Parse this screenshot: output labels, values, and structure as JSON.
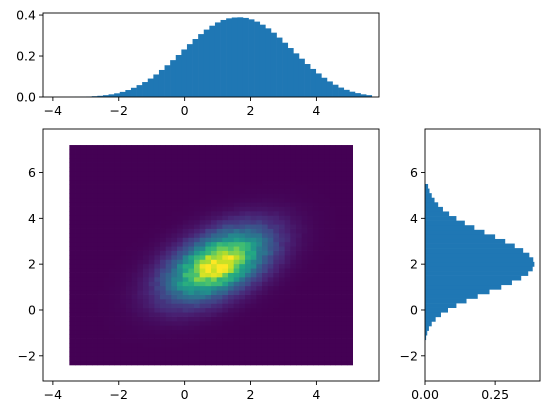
{
  "chart_data": [
    {
      "id": "top",
      "type": "bar",
      "description_role": "marginal histogram of x",
      "color": "#1f77b4",
      "xlim": [
        -4.3,
        5.9
      ],
      "ylim": [
        0,
        0.41
      ],
      "xticks": [
        -4,
        -2,
        0,
        2,
        4
      ],
      "xtick_labels": [
        "−4",
        "−2",
        "0",
        "2",
        "4"
      ],
      "yticks": [
        0.0,
        0.2,
        0.4
      ],
      "ytick_labels": [
        "0.0",
        "0.2",
        "0.4"
      ],
      "bin_start": -3.5,
      "bin_width": 0.17,
      "values": [
        0.0005,
        0.001,
        0.0015,
        0.0025,
        0.004,
        0.006,
        0.009,
        0.013,
        0.018,
        0.025,
        0.034,
        0.045,
        0.058,
        0.073,
        0.09,
        0.11,
        0.132,
        0.155,
        0.18,
        0.205,
        0.232,
        0.258,
        0.283,
        0.307,
        0.329,
        0.348,
        0.364,
        0.376,
        0.384,
        0.388,
        0.389,
        0.386,
        0.379,
        0.368,
        0.353,
        0.335,
        0.314,
        0.29,
        0.265,
        0.239,
        0.213,
        0.187,
        0.161,
        0.137,
        0.115,
        0.094,
        0.076,
        0.06,
        0.046,
        0.035,
        0.026,
        0.019,
        0.013,
        0.009
      ]
    },
    {
      "id": "main",
      "type": "heatmap",
      "description_role": "2D histogram (viridis)",
      "colormap": "viridis",
      "xlim": [
        -4.3,
        5.9
      ],
      "ylim": [
        -3.1,
        7.9
      ],
      "xticks": [
        -4,
        -2,
        0,
        2,
        4
      ],
      "xtick_labels": [
        "−4",
        "−2",
        "0",
        "2",
        "4"
      ],
      "yticks": [
        -2,
        0,
        2,
        4,
        6
      ],
      "ytick_labels": [
        "−2",
        "0",
        "2",
        "4",
        "6"
      ],
      "x_range": [
        -3.5,
        5.1
      ],
      "y_range": [
        -2.4,
        7.2
      ],
      "bins": [
        50,
        50
      ],
      "mean": [
        1.0,
        2.0
      ],
      "std": [
        1.0,
        1.0
      ],
      "correlation": 0.5
    },
    {
      "id": "right",
      "type": "bar",
      "orientation": "horizontal",
      "description_role": "marginal histogram of y",
      "color": "#1f77b4",
      "xlim": [
        0,
        0.41
      ],
      "ylim": [
        -3.1,
        7.9
      ],
      "xticks": [
        0.0,
        0.25
      ],
      "xtick_labels": [
        "0.00",
        "0.25"
      ],
      "yticks": [
        -2,
        0,
        2,
        4,
        6
      ],
      "ytick_labels": [
        "−2",
        "0",
        "2",
        "4",
        "6"
      ],
      "bin_start": -1.3,
      "bin_width": 0.2,
      "values": [
        0.004,
        0.008,
        0.014,
        0.024,
        0.038,
        0.057,
        0.082,
        0.112,
        0.148,
        0.188,
        0.23,
        0.272,
        0.31,
        0.343,
        0.368,
        0.384,
        0.39,
        0.386,
        0.372,
        0.35,
        0.32,
        0.286,
        0.25,
        0.212,
        0.176,
        0.142,
        0.112,
        0.086,
        0.064,
        0.047,
        0.034,
        0.024,
        0.016,
        0.011
      ]
    }
  ]
}
